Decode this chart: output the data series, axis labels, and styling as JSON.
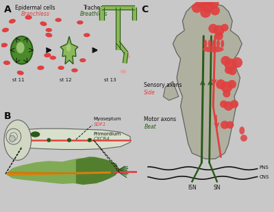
{
  "bg_color": "#c8c8c8",
  "panel_bg_A": "#e8e8e4",
  "panel_bg_B": "#e4e8e0",
  "panel_bg_C": "#d0d0cc",
  "dark_green": "#2a5a1a",
  "mid_green": "#4a8a2a",
  "light_green": "#8ab858",
  "pale_green": "#b8d890",
  "red_pink": "#e04040",
  "light_red": "#f09090",
  "orange": "#d88010",
  "black": "#101010",
  "gray_body": "#b0b0a8",
  "gray_outline": "#606060",
  "white": "#ffffff",
  "panel_A_label": "A",
  "panel_B_label": "B",
  "panel_C_label": "C",
  "title_epidermal": "Epidermal cells",
  "title_branchless": "Branchless",
  "title_trachea": "Trachea",
  "title_breathless": "Breathless",
  "st11": "st 11",
  "st12": "st 12",
  "st13": "st 13",
  "myoseptum": "Myoseptum",
  "sdf1": "SDF1",
  "primordium": "Primordium",
  "cxcr4": "CXCR4",
  "sensory_axons": "Sensory axons",
  "side": "Side",
  "motor_axons": "Motor axons",
  "beat": "Beat",
  "pns": "PNS",
  "cns": "CNS",
  "isn": "ISN",
  "sn": "SN"
}
